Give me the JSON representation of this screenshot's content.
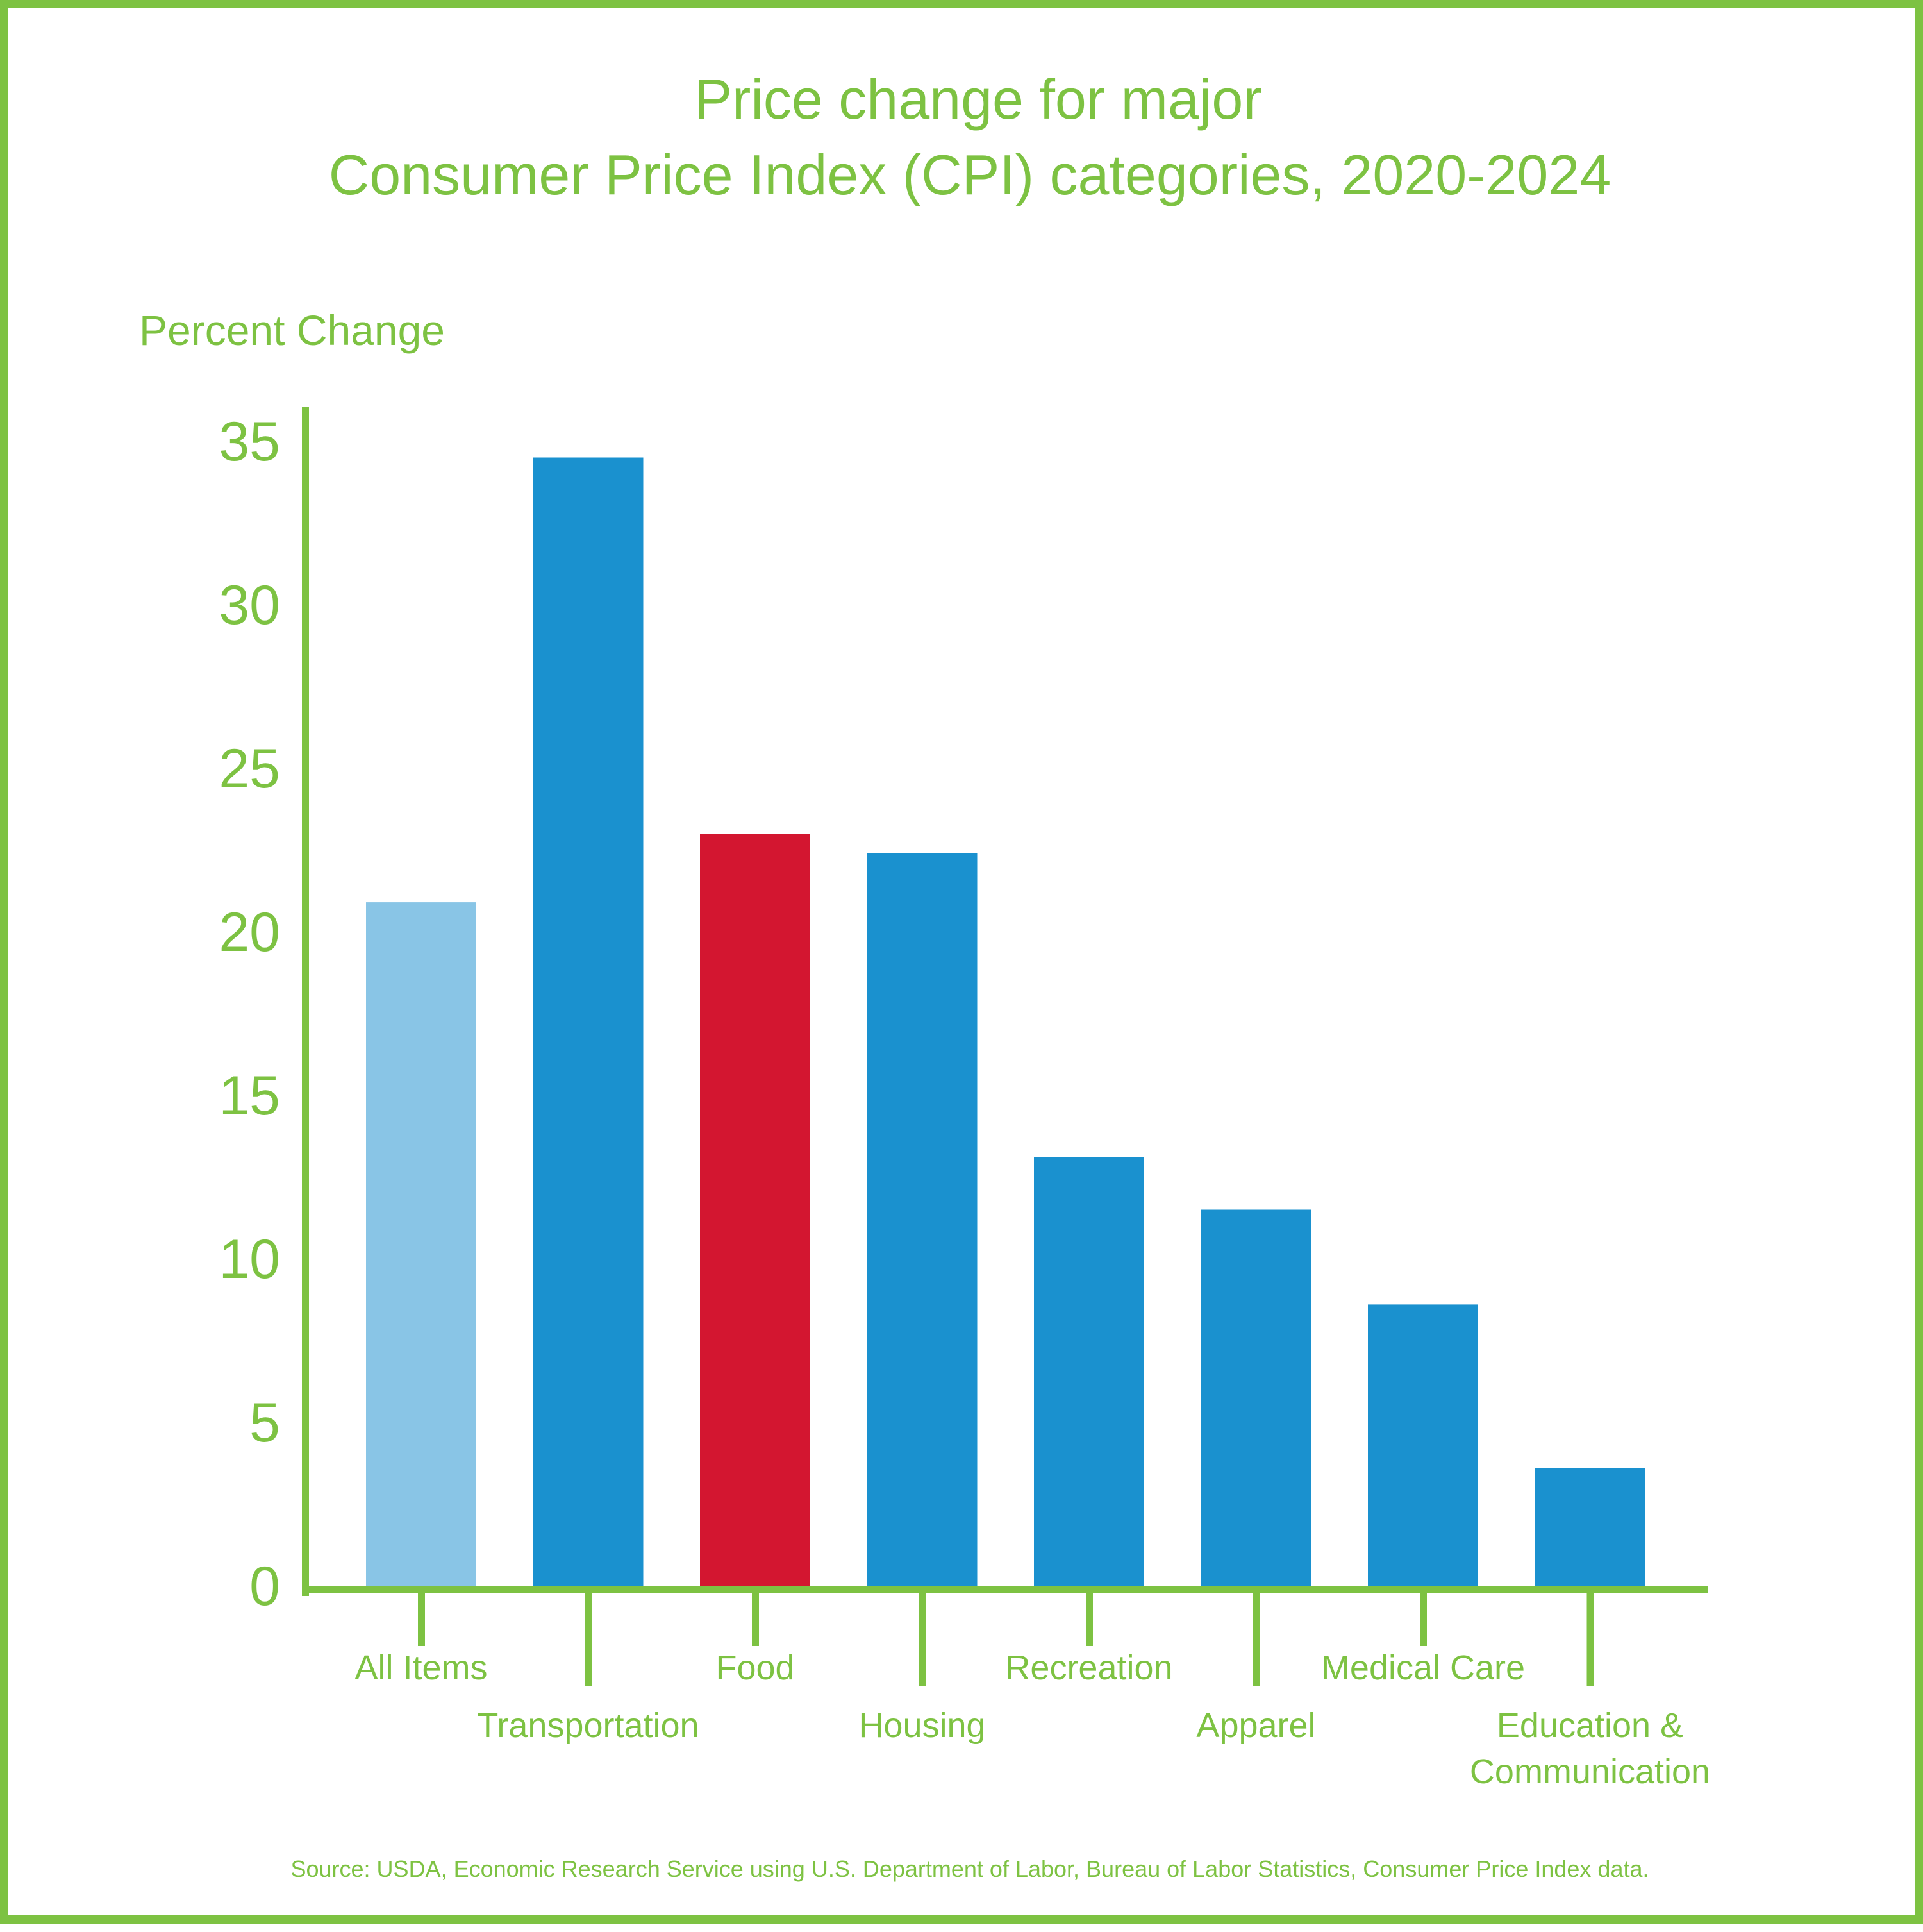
{
  "colors": {
    "accent": "#7DC242",
    "bar_default": "#1A91CF",
    "bar_all_items": "#89C5E6",
    "bar_food": "#D31630"
  },
  "chart_data": {
    "type": "bar",
    "title_lines": [
      "Price change for major",
      "Consumer Price Index (CPI) categories, 2020-2024"
    ],
    "ylabel": "Percent Change",
    "xlabel": "",
    "ylim": [
      0,
      35
    ],
    "yticks": [
      0,
      5,
      10,
      15,
      20,
      25,
      30,
      35
    ],
    "grid": false,
    "categories": [
      "All Items",
      "Transportation",
      "Food",
      "Housing",
      "Recreation",
      "Apparel",
      "Medical Care",
      "Education & Communication"
    ],
    "category_label_lines": [
      [
        "All Items"
      ],
      [
        "Transportation"
      ],
      [
        "Food"
      ],
      [
        "Housing"
      ],
      [
        "Recreation"
      ],
      [
        "Apparel"
      ],
      [
        "Medical Care"
      ],
      [
        "Education &",
        "Communication"
      ]
    ],
    "values": [
      20.9,
      34.5,
      23.0,
      22.4,
      13.1,
      11.5,
      8.6,
      3.6
    ],
    "bar_color_keys": [
      "bar_all_items",
      "bar_default",
      "bar_food",
      "bar_default",
      "bar_default",
      "bar_default",
      "bar_default",
      "bar_default"
    ],
    "source": "Source: USDA, Economic Research Service using U.S. Department of Labor, Bureau of Labor Statistics, Consumer Price Index data."
  }
}
